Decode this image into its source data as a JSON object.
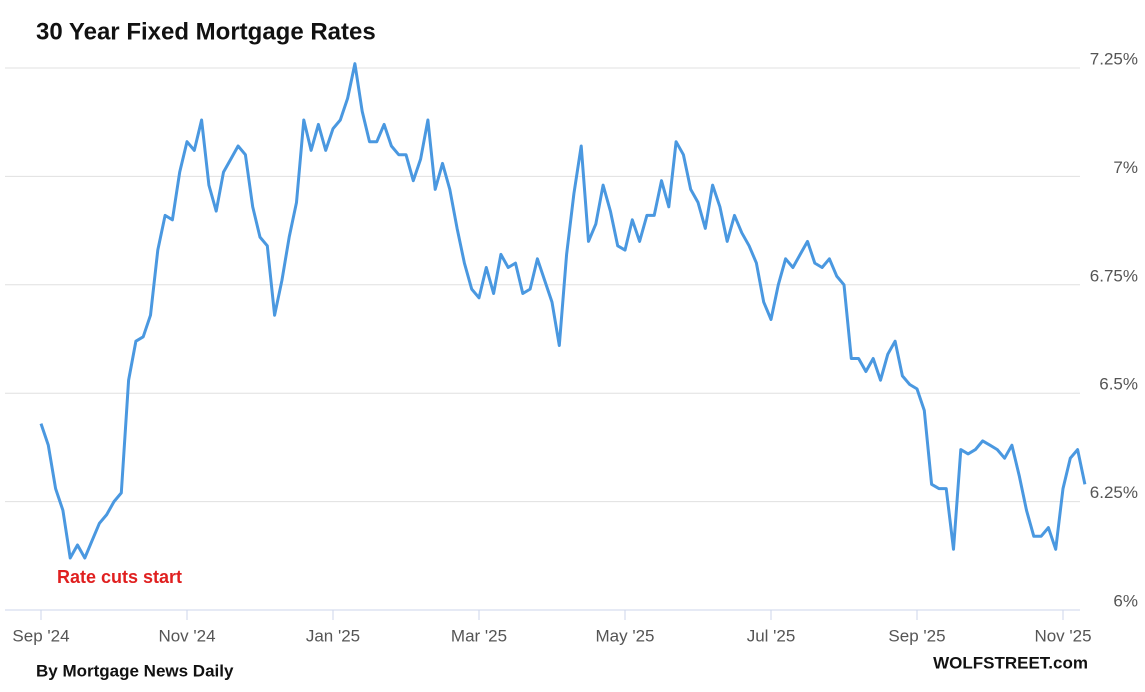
{
  "chart_data": {
    "type": "line",
    "title": "30 Year Fixed Mortgage Rates",
    "annotation": "Rate cuts start",
    "source": "By Mortgage News Daily",
    "credit": "WOLFSTREET.com",
    "categories": [
      "Sep '24",
      null,
      null,
      null,
      null,
      null,
      null,
      null,
      null,
      null,
      null,
      null,
      null,
      null,
      null,
      null,
      null,
      null,
      null,
      null,
      "Nov '24",
      null,
      null,
      null,
      null,
      null,
      null,
      null,
      null,
      null,
      null,
      null,
      null,
      null,
      null,
      null,
      null,
      null,
      null,
      null,
      "Jan '25",
      null,
      null,
      null,
      null,
      null,
      null,
      null,
      null,
      null,
      null,
      null,
      null,
      null,
      null,
      null,
      null,
      null,
      null,
      null,
      "Mar '25",
      null,
      null,
      null,
      null,
      null,
      null,
      null,
      null,
      null,
      null,
      null,
      null,
      null,
      null,
      null,
      null,
      null,
      null,
      null,
      "May '25",
      null,
      null,
      null,
      null,
      null,
      null,
      null,
      null,
      null,
      null,
      null,
      null,
      null,
      null,
      null,
      null,
      null,
      null,
      null,
      "Jul '25",
      null,
      null,
      null,
      null,
      null,
      null,
      null,
      null,
      null,
      null,
      null,
      null,
      null,
      null,
      null,
      null,
      null,
      null,
      null,
      "Sep '25",
      null,
      null,
      null,
      null,
      null,
      null,
      null,
      null,
      null,
      null,
      null,
      null,
      null,
      null,
      null,
      null,
      null,
      null,
      null,
      "Nov '25",
      null,
      null,
      null
    ],
    "series": [
      {
        "name": "30 Year Fixed Mortgage Rates",
        "color": "#4a98e0",
        "values": [
          6.43,
          6.38,
          6.28,
          6.23,
          6.12,
          6.15,
          6.12,
          6.16,
          6.2,
          6.22,
          6.25,
          6.27,
          6.53,
          6.62,
          6.63,
          6.68,
          6.83,
          6.91,
          6.9,
          7.01,
          7.08,
          7.06,
          7.13,
          6.98,
          6.92,
          7.01,
          7.04,
          7.07,
          7.05,
          6.93,
          6.86,
          6.84,
          6.68,
          6.76,
          6.86,
          6.94,
          7.13,
          7.06,
          7.12,
          7.06,
          7.11,
          7.13,
          7.18,
          7.26,
          7.15,
          7.08,
          7.08,
          7.12,
          7.07,
          7.05,
          7.05,
          6.99,
          7.04,
          7.13,
          6.97,
          7.03,
          6.97,
          6.88,
          6.8,
          6.74,
          6.72,
          6.79,
          6.73,
          6.82,
          6.79,
          6.8,
          6.73,
          6.74,
          6.81,
          6.76,
          6.71,
          6.61,
          6.82,
          6.96,
          7.07,
          6.85,
          6.89,
          6.98,
          6.92,
          6.84,
          6.83,
          6.9,
          6.85,
          6.91,
          6.91,
          6.99,
          6.93,
          7.08,
          7.05,
          6.97,
          6.94,
          6.88,
          6.98,
          6.93,
          6.85,
          6.91,
          6.87,
          6.84,
          6.8,
          6.71,
          6.67,
          6.75,
          6.81,
          6.79,
          6.82,
          6.85,
          6.8,
          6.79,
          6.81,
          6.77,
          6.75,
          6.58,
          6.58,
          6.55,
          6.58,
          6.53,
          6.59,
          6.62,
          6.54,
          6.52,
          6.51,
          6.46,
          6.29,
          6.28,
          6.28,
          6.14,
          6.37,
          6.36,
          6.37,
          6.39,
          6.38,
          6.37,
          6.35,
          6.38,
          6.31,
          6.23,
          6.17,
          6.17,
          6.19,
          6.14,
          6.28,
          6.35,
          6.37,
          6.29
        ]
      }
    ],
    "ylim": [
      6,
      7.25
    ],
    "yticks": [
      {
        "value": 6,
        "label": "6%"
      },
      {
        "value": 6.25,
        "label": "6.25%"
      },
      {
        "value": 6.5,
        "label": "6.5%"
      },
      {
        "value": 6.75,
        "label": "6.75%"
      },
      {
        "value": 7,
        "label": "7%"
      },
      {
        "value": 7.25,
        "label": "7.25%"
      }
    ],
    "grid": true
  }
}
